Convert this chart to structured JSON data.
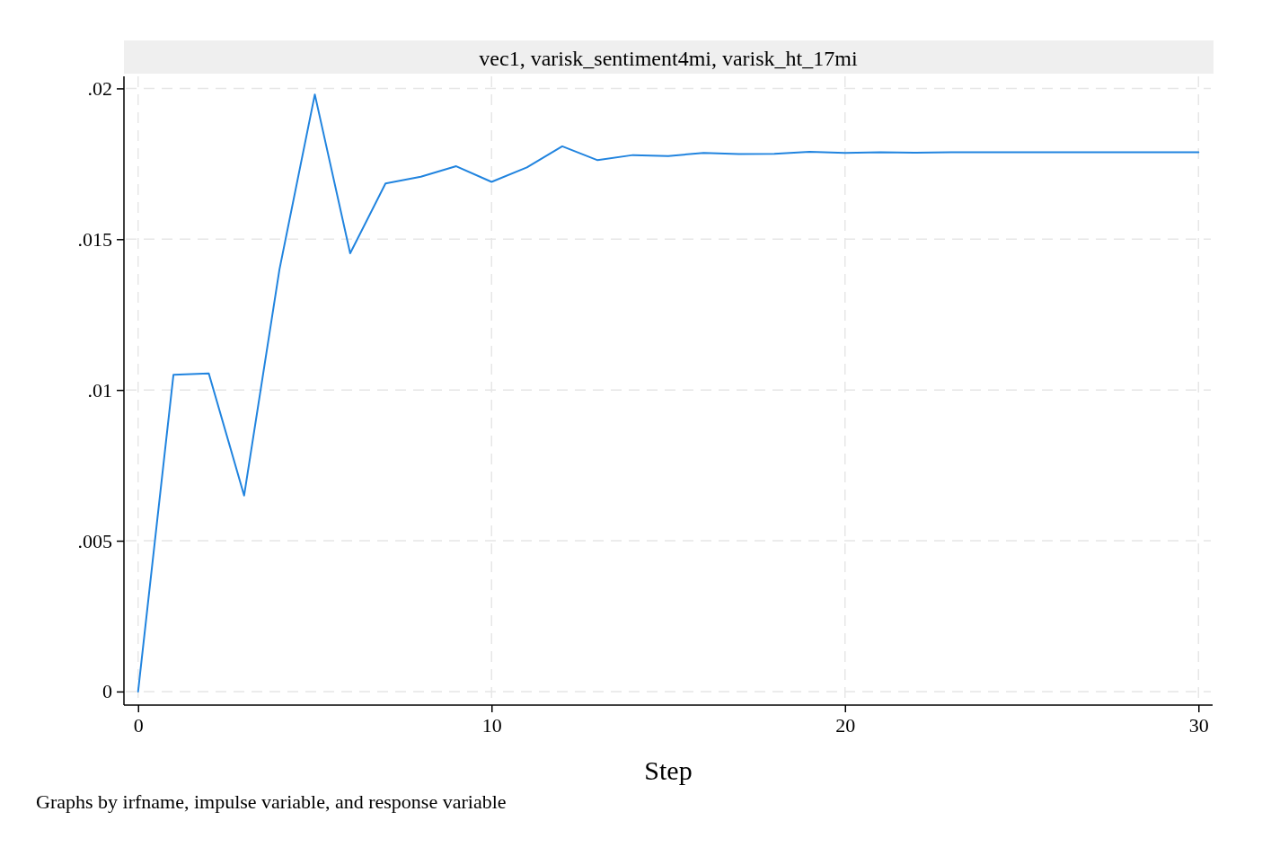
{
  "chart_data": {
    "type": "line",
    "title": "vec1, varisk_sentiment4mi, varisk_ht_17mi",
    "xlabel": "Step",
    "annotations": [
      "Graphs by irfname, impulse variable, and response variable"
    ],
    "x": [
      0,
      1,
      2,
      3,
      4,
      5,
      6,
      7,
      8,
      9,
      10,
      11,
      12,
      13,
      14,
      15,
      16,
      17,
      18,
      19,
      20,
      21,
      22,
      23,
      24,
      25,
      26,
      27,
      28,
      29,
      30
    ],
    "series": [
      {
        "color": "#2184df",
        "values": [
          0,
          0.0105,
          0.01055,
          0.0065,
          0.014,
          0.0198,
          0.01453,
          0.01685,
          0.01707,
          0.01742,
          0.0169,
          0.01738,
          0.01808,
          0.01762,
          0.01779,
          0.01776,
          0.01786,
          0.01782,
          0.01783,
          0.0179,
          0.01786,
          0.01788,
          0.01787,
          0.01788,
          0.01788,
          0.01788,
          0.01788,
          0.01788,
          0.01788,
          0.01788,
          0.01788
        ]
      }
    ],
    "xlim": [
      -0.4,
      30.4
    ],
    "ylim": [
      -0.00045,
      0.0204
    ],
    "xticks": [
      0,
      10,
      20,
      30
    ],
    "yticks": [
      0,
      {
        "value": 0.005,
        "label": ".005"
      },
      {
        "value": 0.01,
        "label": ".01"
      },
      {
        "value": 0.015,
        "label": ".015"
      },
      {
        "value": 0.02,
        "label": ".02"
      }
    ],
    "grid": true
  }
}
